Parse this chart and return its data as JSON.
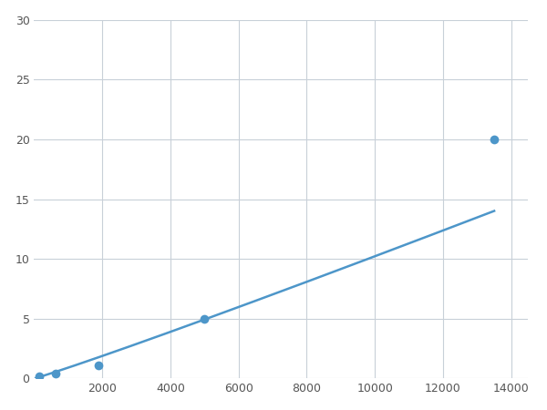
{
  "x_data": [
    156.25,
    625,
    1875,
    5000,
    13500
  ],
  "y_data": [
    0.2,
    0.4,
    1.1,
    5.0,
    20.0
  ],
  "line_color": "#4d96c9",
  "marker_color": "#4d96c9",
  "marker_size": 7,
  "xlim": [
    0,
    14500
  ],
  "ylim": [
    0,
    30
  ],
  "xticks": [
    2000,
    4000,
    6000,
    8000,
    10000,
    12000,
    14000
  ],
  "yticks": [
    0,
    5,
    10,
    15,
    20,
    25,
    30
  ],
  "grid_color": "#c8d0d8",
  "background_color": "#ffffff",
  "line_width": 1.8
}
